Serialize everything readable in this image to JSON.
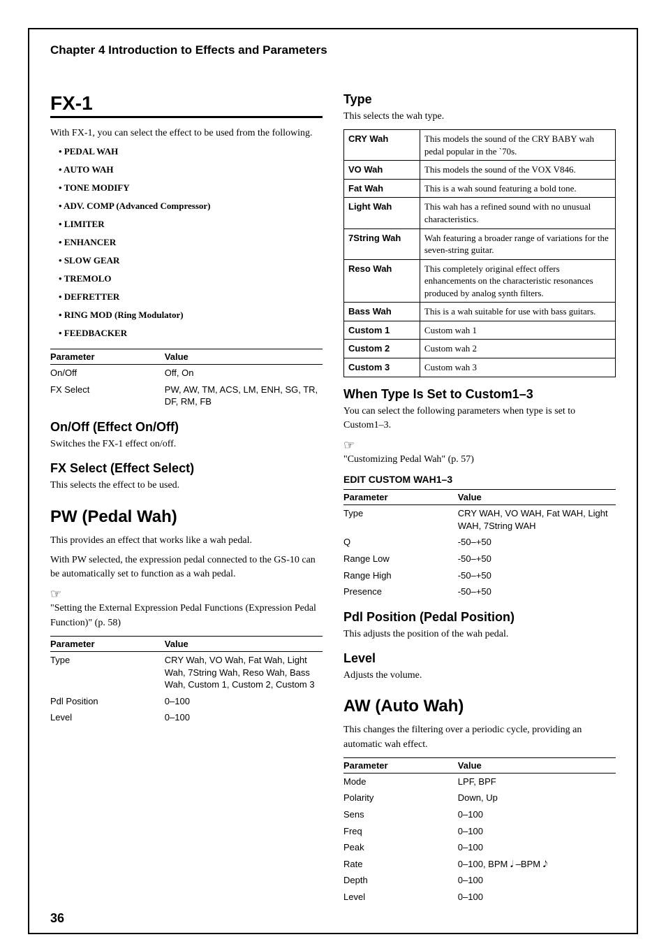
{
  "chapter_title": "Chapter 4 Introduction to Effects and Parameters",
  "page_number": "36",
  "left": {
    "fx1_title": "FX-1",
    "fx1_intro": "With FX-1, you can select the effect to be used from the following.",
    "effects": [
      "PEDAL WAH",
      "AUTO WAH",
      "TONE MODIFY",
      "ADV. COMP (Advanced Compressor)",
      "LIMITER",
      "ENHANCER",
      "SLOW GEAR",
      "TREMOLO",
      "DEFRETTER",
      "RING MOD (Ring Modulator)",
      "FEEDBACKER"
    ],
    "fx1_params_header": {
      "p": "Parameter",
      "v": "Value"
    },
    "fx1_params": [
      {
        "p": "On/Off",
        "v": "Off, On"
      },
      {
        "p": "FX Select",
        "v": "PW, AW, TM, ACS, LM, ENH, SG, TR, DF, RM, FB"
      }
    ],
    "onoff_head": "On/Off (Effect On/Off)",
    "onoff_body": "Switches the FX-1 effect on/off.",
    "fxsel_head": "FX Select (Effect Select)",
    "fxsel_body": "This selects the effect to be used.",
    "pw_title": "PW (Pedal Wah)",
    "pw_body1": "This provides an effect that works like a wah pedal.",
    "pw_body2": "With PW selected, the expression pedal connected to the GS-10 can be automatically set to function as a wah pedal.",
    "pw_ref": "\"Setting the External Expression Pedal Functions (Expression Pedal Function)\" (p. 58)",
    "pw_params_header": {
      "p": "Parameter",
      "v": "Value"
    },
    "pw_params": [
      {
        "p": "Type",
        "v": "CRY Wah, VO Wah, Fat Wah, Light Wah, 7String Wah, Reso Wah, Bass Wah, Custom 1, Custom 2, Custom 3"
      },
      {
        "p": "Pdl Position",
        "v": "0–100"
      },
      {
        "p": "Level",
        "v": "0–100"
      }
    ]
  },
  "right": {
    "type_head": "Type",
    "type_body": "This selects the wah type.",
    "type_rows": [
      {
        "name": "CRY Wah",
        "desc": "This models the sound of the CRY BABY wah pedal popular in the `70s."
      },
      {
        "name": "VO Wah",
        "desc": "This models the sound of the VOX V846."
      },
      {
        "name": "Fat Wah",
        "desc": "This is a wah sound featuring a bold tone."
      },
      {
        "name": "Light Wah",
        "desc": "This wah has a refined sound with no unusual characteristics."
      },
      {
        "name": "7String Wah",
        "desc": "Wah featuring a broader range of variations for the seven-string guitar."
      },
      {
        "name": "Reso Wah",
        "desc": "This completely original effect offers enhancements on the characteristic resonances produced by analog synth filters."
      },
      {
        "name": "Bass Wah",
        "desc": "This is a wah suitable for use with bass guitars."
      },
      {
        "name": "Custom 1",
        "desc": "Custom wah 1"
      },
      {
        "name": "Custom 2",
        "desc": "Custom wah 2"
      },
      {
        "name": "Custom 3",
        "desc": "Custom wah 3"
      }
    ],
    "custom_head": "When Type Is Set to Custom1–3",
    "custom_body": "You can select the following parameters when type is set to Custom1–3.",
    "custom_ref": "\"Customizing Pedal Wah\" (p. 57)",
    "edit_head": "EDIT CUSTOM WAH1–3",
    "edit_params_header": {
      "p": "Parameter",
      "v": "Value"
    },
    "edit_params": [
      {
        "p": "Type",
        "v": "CRY WAH, VO WAH, Fat WAH, Light WAH, 7String WAH"
      },
      {
        "p": "Q",
        "v": "-50–+50"
      },
      {
        "p": "Range Low",
        "v": "-50–+50"
      },
      {
        "p": "Range High",
        "v": "-50–+50"
      },
      {
        "p": "Presence",
        "v": "-50–+50"
      }
    ],
    "pdl_head": "Pdl Position (Pedal Position)",
    "pdl_body": "This adjusts the position of the wah pedal.",
    "level_head": "Level",
    "level_body": "Adjusts the volume.",
    "aw_title": "AW (Auto Wah)",
    "aw_body": "This changes the filtering over a periodic cycle, providing an automatic wah effect.",
    "aw_params_header": {
      "p": "Parameter",
      "v": "Value"
    },
    "aw_params": [
      {
        "p": "Mode",
        "v": "LPF, BPF"
      },
      {
        "p": "Polarity",
        "v": "Down, Up"
      },
      {
        "p": "Sens",
        "v": "0–100"
      },
      {
        "p": "Freq",
        "v": "0–100"
      },
      {
        "p": "Peak",
        "v": "0–100"
      },
      {
        "p": "Rate",
        "v": "0–100, BPM 𝅘𝅥 –BPM 𝅘𝅥𝅮"
      },
      {
        "p": "Depth",
        "v": "0–100"
      },
      {
        "p": "Level",
        "v": "0–100"
      }
    ]
  }
}
